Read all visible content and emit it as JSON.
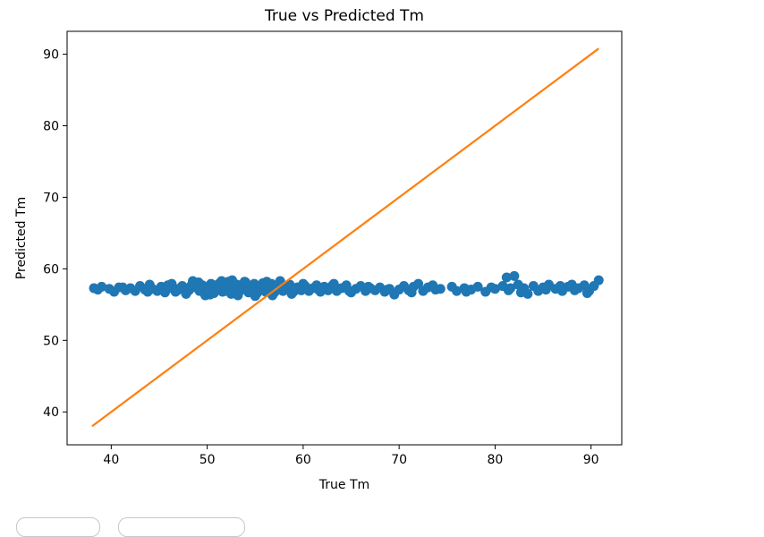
{
  "chart_data": {
    "type": "scatter",
    "title": "True vs Predicted Tm",
    "xlabel": "True Tm",
    "ylabel": "Predicted Tm",
    "xlim": [
      35.4,
      93.2
    ],
    "ylim": [
      35.4,
      93.2
    ],
    "xticks": [
      40,
      50,
      60,
      70,
      80,
      90
    ],
    "yticks": [
      40,
      50,
      60,
      70,
      80,
      90
    ],
    "grid": false,
    "colors": {
      "scatter": "#1f77b4",
      "line": "#ff7f0e"
    },
    "line": {
      "x": [
        38.0,
        90.8
      ],
      "y": [
        38.0,
        90.8
      ]
    },
    "points": [
      [
        38.2,
        57.3
      ],
      [
        39.0,
        57.5
      ],
      [
        39.8,
        57.2
      ],
      [
        40.3,
        56.8
      ],
      [
        40.8,
        57.4
      ],
      [
        41.5,
        57.0
      ],
      [
        42.0,
        57.3
      ],
      [
        42.5,
        56.9
      ],
      [
        43.0,
        57.6
      ],
      [
        43.5,
        57.1
      ],
      [
        44.0,
        57.8
      ],
      [
        44.3,
        57.2
      ],
      [
        44.8,
        56.9
      ],
      [
        45.2,
        57.5
      ],
      [
        45.6,
        56.7
      ],
      [
        46.0,
        57.3
      ],
      [
        46.3,
        57.9
      ],
      [
        46.7,
        56.8
      ],
      [
        47.0,
        57.2
      ],
      [
        47.4,
        57.6
      ],
      [
        47.8,
        56.5
      ],
      [
        48.1,
        57.0
      ],
      [
        48.5,
        58.3
      ],
      [
        48.8,
        57.4
      ],
      [
        49.2,
        56.9
      ],
      [
        49.5,
        57.7
      ],
      [
        49.8,
        56.3
      ],
      [
        50.1,
        57.1
      ],
      [
        50.4,
        57.9
      ],
      [
        50.7,
        56.6
      ],
      [
        51.0,
        57.3
      ],
      [
        51.3,
        58.0
      ],
      [
        51.6,
        56.8
      ],
      [
        51.9,
        57.5
      ],
      [
        52.2,
        58.2
      ],
      [
        52.5,
        56.5
      ],
      [
        52.8,
        57.2
      ],
      [
        53.1,
        57.8
      ],
      [
        53.4,
        56.9
      ],
      [
        53.7,
        57.4
      ],
      [
        54.0,
        58.1
      ],
      [
        54.3,
        56.7
      ],
      [
        54.6,
        57.3
      ],
      [
        54.9,
        57.9
      ],
      [
        55.2,
        56.6
      ],
      [
        55.5,
        57.5
      ],
      [
        55.8,
        58.0
      ],
      [
        56.1,
        56.8
      ],
      [
        56.4,
        57.4
      ],
      [
        56.7,
        57.9
      ],
      [
        57.0,
        56.7
      ],
      [
        57.3,
        57.6
      ],
      [
        57.6,
        58.3
      ],
      [
        57.9,
        56.9
      ],
      [
        58.2,
        57.3
      ],
      [
        58.6,
        57.8
      ],
      [
        59.0,
        56.8
      ],
      [
        59.4,
        57.4
      ],
      [
        59.8,
        57.0
      ],
      [
        60.2,
        57.6
      ],
      [
        60.6,
        56.9
      ],
      [
        61.0,
        57.3
      ],
      [
        61.4,
        57.7
      ],
      [
        61.8,
        56.8
      ],
      [
        62.2,
        57.5
      ],
      [
        62.6,
        57.0
      ],
      [
        63.0,
        57.6
      ],
      [
        63.5,
        56.9
      ],
      [
        64.0,
        57.3
      ],
      [
        64.5,
        57.7
      ],
      [
        65.0,
        56.7
      ],
      [
        65.5,
        57.2
      ],
      [
        66.0,
        57.6
      ],
      [
        66.5,
        56.9
      ],
      [
        67.0,
        57.3
      ],
      [
        67.5,
        57.0
      ],
      [
        68.0,
        57.4
      ],
      [
        68.5,
        56.8
      ],
      [
        69.0,
        57.2
      ],
      [
        69.5,
        56.4
      ],
      [
        70.0,
        57.1
      ],
      [
        70.5,
        57.6
      ],
      [
        71.0,
        57.0
      ],
      [
        71.5,
        57.5
      ],
      [
        72.0,
        57.9
      ],
      [
        72.5,
        56.9
      ],
      [
        73.0,
        57.4
      ],
      [
        73.5,
        57.7
      ],
      [
        74.3,
        57.2
      ],
      [
        75.5,
        57.5
      ],
      [
        76.0,
        56.9
      ],
      [
        76.8,
        57.3
      ],
      [
        77.5,
        57.1
      ],
      [
        78.2,
        57.5
      ],
      [
        79.0,
        56.8
      ],
      [
        80.0,
        57.2
      ],
      [
        80.8,
        57.6
      ],
      [
        81.2,
        58.8
      ],
      [
        81.6,
        57.3
      ],
      [
        82.0,
        59.0
      ],
      [
        82.4,
        57.8
      ],
      [
        82.7,
        56.7
      ],
      [
        83.0,
        57.3
      ],
      [
        84.0,
        57.6
      ],
      [
        84.5,
        56.9
      ],
      [
        85.0,
        57.4
      ],
      [
        85.6,
        57.8
      ],
      [
        86.3,
        57.2
      ],
      [
        87.0,
        56.9
      ],
      [
        87.6,
        57.5
      ],
      [
        88.0,
        57.8
      ],
      [
        88.7,
        57.3
      ],
      [
        89.3,
        57.7
      ],
      [
        89.8,
        56.9
      ],
      [
        90.3,
        57.6
      ],
      [
        90.8,
        58.4
      ],
      [
        38.6,
        57.1
      ],
      [
        41.2,
        57.4
      ],
      [
        43.8,
        56.8
      ],
      [
        45.9,
        57.7
      ],
      [
        46.9,
        57.0
      ],
      [
        48.3,
        57.6
      ],
      [
        49.1,
        58.1
      ],
      [
        50.3,
        56.4
      ],
      [
        50.9,
        57.7
      ],
      [
        51.5,
        58.3
      ],
      [
        52.0,
        56.9
      ],
      [
        52.6,
        58.4
      ],
      [
        53.2,
        56.3
      ],
      [
        53.9,
        58.2
      ],
      [
        54.4,
        57.0
      ],
      [
        55.0,
        56.2
      ],
      [
        55.6,
        57.1
      ],
      [
        56.2,
        58.2
      ],
      [
        56.8,
        56.3
      ],
      [
        57.4,
        57.1
      ],
      [
        58.0,
        57.6
      ],
      [
        58.8,
        56.5
      ],
      [
        60.0,
        57.9
      ],
      [
        61.6,
        57.1
      ],
      [
        63.2,
        57.9
      ],
      [
        64.8,
        56.9
      ],
      [
        66.8,
        57.5
      ],
      [
        68.8,
        57.1
      ],
      [
        71.3,
        56.7
      ],
      [
        73.8,
        57.1
      ],
      [
        77.0,
        56.8
      ],
      [
        79.6,
        57.4
      ],
      [
        81.4,
        57.0
      ],
      [
        83.4,
        56.5
      ],
      [
        85.3,
        57.1
      ],
      [
        86.8,
        57.6
      ],
      [
        88.3,
        57.0
      ],
      [
        89.6,
        56.6
      ]
    ]
  },
  "controls": {
    "button_1_label": "",
    "button_2_label": ""
  }
}
